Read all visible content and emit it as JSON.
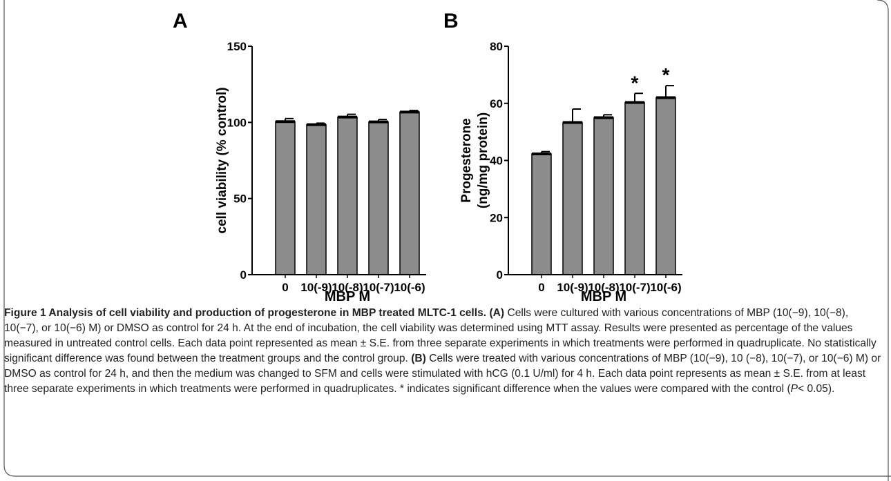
{
  "chart_data": [
    {
      "type": "bar",
      "panel_label": "A",
      "categories": [
        "0",
        "10(-9)",
        "10(-8)",
        "10(-7)",
        "10(-6)"
      ],
      "values": [
        100.5,
        98.5,
        103.5,
        100.3,
        106.8
      ],
      "errors": [
        2.0,
        1.0,
        1.8,
        1.6,
        1.0
      ],
      "annotations": [
        "",
        "",
        "",
        "",
        ""
      ],
      "xlabel": "MBP M",
      "ylabel": "cell viability (% control)",
      "ylim": [
        0,
        150
      ],
      "yticks": [
        0,
        50,
        100,
        150
      ],
      "bar_color": "#8c8c8c",
      "grid": false
    },
    {
      "type": "bar",
      "panel_label": "B",
      "categories": [
        "0",
        "10(-9)",
        "10(-8)",
        "10(-7)",
        "10(-6)"
      ],
      "values": [
        42.3,
        53.3,
        55.0,
        60.3,
        62.0
      ],
      "errors": [
        0.8,
        4.7,
        1.0,
        3.2,
        4.2
      ],
      "annotations": [
        "",
        "",
        "",
        "*",
        "*"
      ],
      "xlabel": "MBP M",
      "ylabel_lines": [
        "Progesterone",
        "(ng/mg protein)"
      ],
      "ylim": [
        0,
        80
      ],
      "yticks": [
        0,
        20,
        40,
        60,
        80
      ],
      "bar_color": "#8c8c8c",
      "grid": false
    }
  ],
  "caption": {
    "title": "Figure 1 Analysis of cell viability and production of progesterone in MBP treated MLTC-1 cells.",
    "part_a_label": "(A)",
    "part_a_text": "Cells were cultured with various concentrations of MBP (10(−9), 10(−8), 10(−7), or 10(−6) M) or DMSO as control for 24 h. At the end of incubation, the cell viability was determined using MTT assay. Results were presented as percentage of the values measured in untreated control cells. Each data point represented as mean ± S.E. from three separate experiments in which treatments were performed in quadruplicate. No statistically significant difference was found between the treatment groups and the control group.",
    "part_b_label": "(B)",
    "part_b_text": "Cells were treated with various concentrations of MBP (10(−9), 10 (−8), 10(−7), or 10(−6) M) or DMSO as control for 24 h, and then the medium was changed to SFM and cells were stimulated with hCG (0.1 U/ml) for 4 h. Each data point represents as mean ± S.E. from at least three separate experiments in which treatments were performed in quadruplicates. * indicates significant difference when the values were compared with the control (",
    "p_symbol": "P",
    "p_text": "< 0.05)."
  }
}
